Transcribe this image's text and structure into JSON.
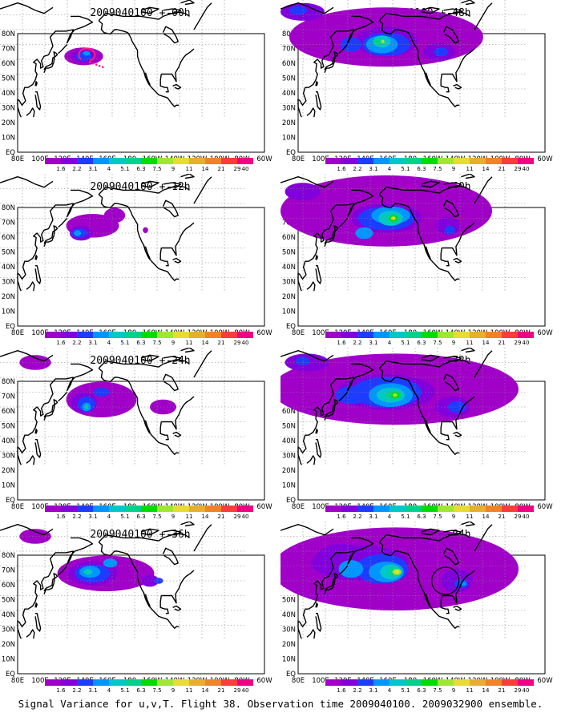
{
  "panels": [
    {
      "title": "2009040100 + 00h"
    },
    {
      "title": "2009040100 + 12h"
    },
    {
      "title": "2009040100 + 24h"
    },
    {
      "title": "2009040100 + 36h"
    },
    {
      "title": "2009040100 + 48h"
    },
    {
      "title": "2009040100 + 60h"
    },
    {
      "title": "2009040100 + 72h"
    },
    {
      "title": "2009040100 + 84h"
    }
  ],
  "lat_labels": [
    "80N",
    "70N",
    "60N",
    "50N",
    "40N",
    "30N",
    "20N",
    "10N",
    "EQ"
  ],
  "lon_labels": [
    "80E",
    "100E",
    "120E",
    "140E",
    "160E",
    "180",
    "160W",
    "140W",
    "120W",
    "100W",
    "80W",
    "60W"
  ],
  "colorbar": {
    "labels": [
      "1.6",
      "2.2",
      "3.1",
      "4",
      "5.1",
      "6.3",
      "7.5",
      "9",
      "11",
      "14",
      "21",
      "29",
      "40"
    ],
    "colors": [
      "#a000c8",
      "#8200dc",
      "#1e3cff",
      "#0096ff",
      "#00c8c8",
      "#00d28c",
      "#00dc00",
      "#a0e632",
      "#e6dc32",
      "#e6af2d",
      "#f08228",
      "#fa3c3c",
      "#f00082"
    ]
  },
  "footer": "Signal Variance for u,v,T. Flight 38. Observation time 2009040100. 2009032900 ensemble."
}
